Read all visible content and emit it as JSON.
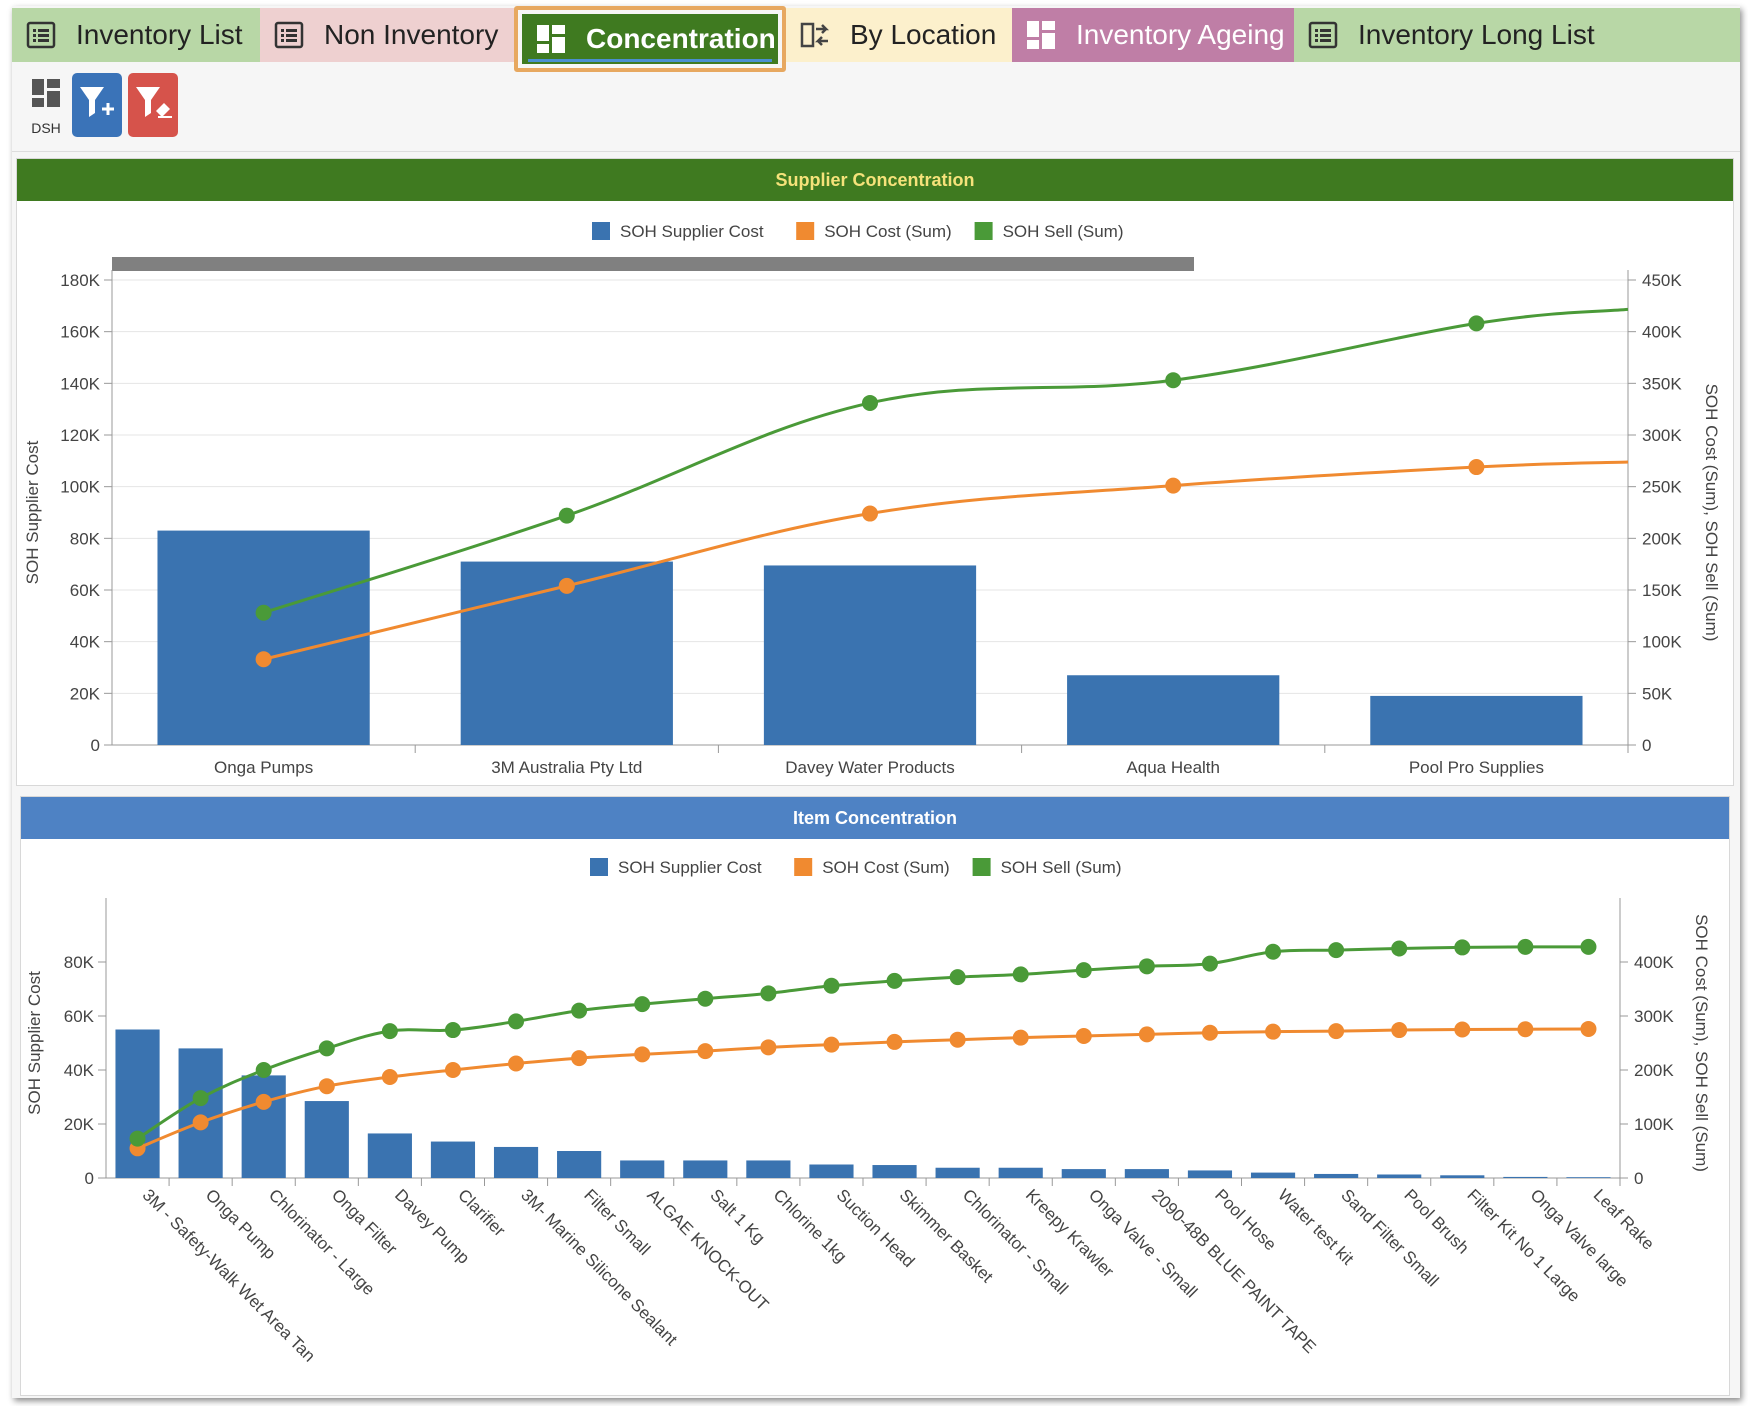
{
  "tabs": [
    {
      "label": "Inventory List",
      "icon": "list-icon",
      "bg": "#b8d7a6",
      "color": "#222222"
    },
    {
      "label": "Non Inventory",
      "icon": "list-icon",
      "bg": "#eed0d0",
      "color": "#222222"
    },
    {
      "label": "Concentration",
      "icon": "dashboard-icon",
      "bg": "#3f7a20",
      "color": "#ffffff",
      "active": true
    },
    {
      "label": "By Location",
      "icon": "transfer-icon",
      "bg": "#fcf0cc",
      "color": "#222222"
    },
    {
      "label": "Inventory Ageing",
      "icon": "dashboard-icon",
      "bg": "#bf7ea6",
      "color": "#ffffff"
    },
    {
      "label": "Inventory Long List",
      "icon": "list-icon",
      "bg": "#b8d7a6",
      "color": "#222222"
    }
  ],
  "toolbar": {
    "dsh_label": "DSH",
    "add_filter_icon": "filter-add-icon",
    "clear_filter_icon": "filter-clear-icon"
  },
  "colors": {
    "supplier_cost": "#3a73b0",
    "cost_sum": "#f08a30",
    "sell_sum": "#4a9a38",
    "supplier_header": "#3f7a20",
    "item_header": "#4e82c4",
    "supplier_title": "#f5e27a"
  },
  "chart_data": [
    {
      "type": "bar",
      "title": "Supplier Concentration",
      "legend": [
        "SOH Supplier Cost",
        "SOH Cost (Sum)",
        "SOH Sell (Sum)"
      ],
      "legend_placement": "top",
      "ylabel": "SOH Supplier Cost",
      "y2label": "SOH Cost (Sum), SOH Sell (Sum)",
      "ylim": [
        0,
        180000
      ],
      "y2lim": [
        0,
        450000
      ],
      "y_ticks": [
        "0",
        "20K",
        "40K",
        "60K",
        "80K",
        "100K",
        "120K",
        "140K",
        "160K",
        "180K"
      ],
      "y2_ticks": [
        "0",
        "50K",
        "100K",
        "150K",
        "200K",
        "250K",
        "300K",
        "350K",
        "400K",
        "450K"
      ],
      "grid": true,
      "categories": [
        "Onga Pumps",
        "3M Australia Pty Ltd",
        "Davey Water Products",
        "Aqua Health",
        "Pool Pro Supplies"
      ],
      "series": [
        {
          "name": "SOH Supplier Cost",
          "type": "bar",
          "axis": "left",
          "values": [
            83000,
            71000,
            69500,
            27000,
            19000
          ]
        },
        {
          "name": "SOH Cost (Sum)",
          "type": "line",
          "axis": "right",
          "values": [
            83000,
            154000,
            224000,
            251000,
            269000
          ]
        },
        {
          "name": "SOH Sell (Sum)",
          "type": "line",
          "axis": "right",
          "values": [
            128000,
            222000,
            331000,
            353000,
            408000
          ]
        }
      ]
    },
    {
      "type": "bar",
      "title": "Item Concentration",
      "legend": [
        "SOH Supplier Cost",
        "SOH Cost (Sum)",
        "SOH Sell (Sum)"
      ],
      "legend_placement": "top",
      "ylabel": "SOH Supplier Cost",
      "y2label": "SOH Cost (Sum), SOH Sell (Sum)",
      "ylim": [
        0,
        100000
      ],
      "y2lim": [
        0,
        500000
      ],
      "y_ticks": [
        "0",
        "20K",
        "40K",
        "60K",
        "80K"
      ],
      "y2_ticks": [
        "0",
        "100K",
        "200K",
        "300K",
        "400K"
      ],
      "grid": false,
      "categories": [
        "3M - Safety-Walk Wet Area Tan",
        "Onga Pump",
        "Chlorinator - Large",
        "Onga Filter",
        "Davey Pump",
        "Clarifier",
        "3M- Marine Silicone Sealant",
        "Filter Small",
        "ALGAE KNOCK-OUT",
        "Salt 1 Kg",
        "Chlorine 1kg",
        "Suction Head",
        "Skimmer Basket",
        "Chlorinator - Small",
        "Kreepy Krawler",
        "Onga Valve - Small",
        "2090-48B BLUE PAINT TAPE",
        "Pool Hose",
        "Water test kit",
        "Sand Filter Small",
        "Pool Brush",
        "Filter Kit No 1 Large",
        "Onga Valve large",
        "Leaf Rake"
      ],
      "series": [
        {
          "name": "SOH Supplier Cost",
          "type": "bar",
          "axis": "left",
          "values": [
            55000,
            48000,
            38000,
            28500,
            16500,
            13500,
            11500,
            10000,
            6500,
            6500,
            6500,
            5000,
            4800,
            3800,
            3800,
            3300,
            3300,
            2800,
            2000,
            1500,
            1300,
            1000,
            400,
            300
          ]
        },
        {
          "name": "SOH Cost (Sum)",
          "type": "line",
          "axis": "right",
          "values": [
            55000,
            103000,
            141000,
            170000,
            187000,
            200000,
            212000,
            222000,
            229000,
            235000,
            242000,
            247000,
            252000,
            256000,
            260000,
            263000,
            266000,
            269000,
            271000,
            272000,
            274000,
            275000,
            275500,
            276000
          ]
        },
        {
          "name": "SOH Sell (Sum)",
          "type": "line",
          "axis": "right",
          "values": [
            73000,
            148000,
            200000,
            240000,
            272000,
            274000,
            290000,
            310000,
            322000,
            332000,
            342000,
            356000,
            365000,
            372000,
            377000,
            385000,
            392000,
            397000,
            419000,
            422000,
            425000,
            427000,
            428000,
            428000
          ]
        }
      ]
    }
  ]
}
